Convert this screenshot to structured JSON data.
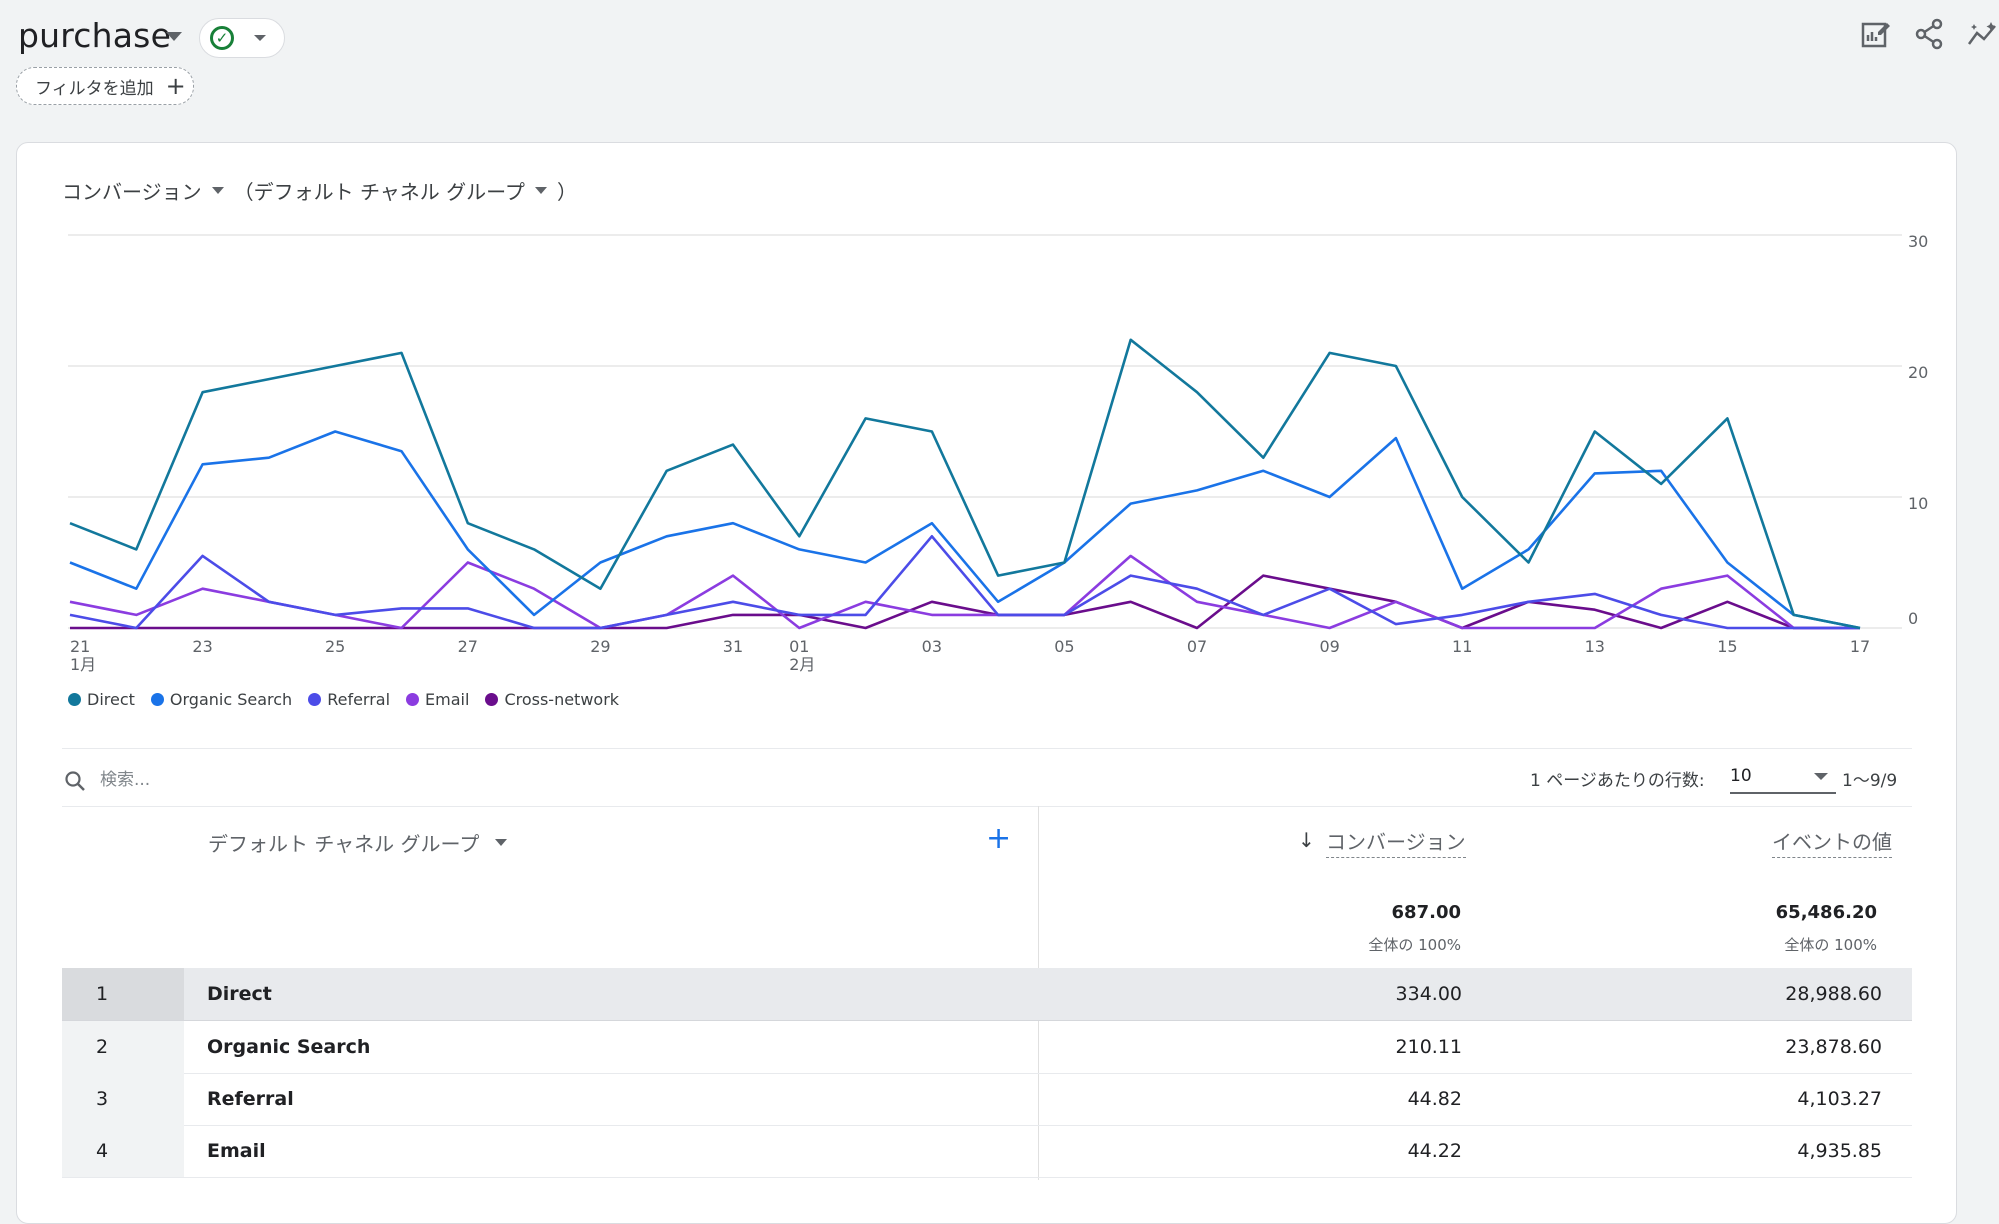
{
  "header": {
    "title": "purchase",
    "filter_chip_label": "フィルタを追加"
  },
  "card": {
    "metric_label": "コンバージョン",
    "dimension_label": "（デフォルト チャネル グループ",
    "dimension_close": "）"
  },
  "chart_data": {
    "type": "line",
    "title": "",
    "x": [
      "21",
      "22",
      "23",
      "24",
      "25",
      "26",
      "27",
      "28",
      "29",
      "30",
      "31",
      "01",
      "02",
      "03",
      "04",
      "05",
      "06",
      "07",
      "08",
      "09",
      "10",
      "11",
      "12",
      "13",
      "14",
      "15",
      "16",
      "17"
    ],
    "x_tick_labels": [
      "21",
      "23",
      "25",
      "27",
      "29",
      "31",
      "01",
      "03",
      "05",
      "07",
      "09",
      "11",
      "13",
      "15",
      "17"
    ],
    "month_labels": [
      {
        "at": "21",
        "label": "1月"
      },
      {
        "at": "01",
        "label": "2月"
      }
    ],
    "ylim": [
      0,
      30
    ],
    "y_ticks": [
      0,
      10,
      20,
      30
    ],
    "grid": true,
    "legend": "bottom-left",
    "series": [
      {
        "name": "Direct",
        "color": "#12789c",
        "values": [
          8,
          6,
          18,
          19,
          20,
          21,
          8,
          6,
          3,
          12,
          14,
          7,
          16,
          15,
          4,
          5,
          22,
          18,
          13,
          21,
          20,
          10,
          5,
          15,
          11,
          16,
          1,
          0
        ]
      },
      {
        "name": "Organic Search",
        "color": "#1a73e8",
        "values": [
          5,
          3,
          12.5,
          13,
          15,
          13.5,
          6,
          1,
          5,
          7,
          8,
          6,
          5,
          8,
          2,
          5,
          9.5,
          10.5,
          12,
          10,
          14.5,
          3,
          6,
          11.8,
          12,
          5,
          1,
          0
        ]
      },
      {
        "name": "Referral",
        "color": "#4c4ce8",
        "values": [
          1,
          0,
          5.5,
          2,
          1,
          1.5,
          1.5,
          0,
          0,
          1,
          2,
          1,
          1,
          7,
          1,
          1,
          4,
          3,
          1,
          3,
          0.3,
          1,
          2,
          2.6,
          1,
          0,
          0,
          0
        ]
      },
      {
        "name": "Email",
        "color": "#8b3ce0",
        "values": [
          2,
          1,
          3,
          2,
          1,
          0,
          5,
          3,
          0,
          1,
          4,
          0,
          2,
          1,
          1,
          1,
          5.5,
          2,
          1,
          0,
          2,
          0,
          0,
          0,
          3,
          4,
          0,
          0
        ]
      },
      {
        "name": "Cross-network",
        "color": "#6a0d8c",
        "values": [
          0,
          0,
          0,
          0,
          0,
          0,
          0,
          0,
          0,
          0,
          1,
          1,
          0,
          2,
          1,
          1,
          2,
          0,
          4,
          3,
          2,
          0,
          2,
          1.4,
          0,
          2,
          0,
          0
        ]
      }
    ]
  },
  "table_controls": {
    "search_placeholder": "検索...",
    "rows_per_page_label": "1 ページあたりの行数:",
    "rows_per_page_value": "10",
    "page_range": "1〜9/9"
  },
  "table": {
    "dimension_header": "デフォルト チャネル グループ",
    "sort_arrow": "↓",
    "metric1_header": "コンバージョン",
    "metric2_header": "イベントの値",
    "total1": "687.00",
    "total1_sub": "全体の 100%",
    "total2": "65,486.20",
    "total2_sub": "全体の 100%",
    "rows": [
      {
        "index": "1",
        "name": "Direct",
        "conversions": "334.00",
        "event_value": "28,988.60"
      },
      {
        "index": "2",
        "name": "Organic Search",
        "conversions": "210.11",
        "event_value": "23,878.60"
      },
      {
        "index": "3",
        "name": "Referral",
        "conversions": "44.82",
        "event_value": "4,103.27"
      },
      {
        "index": "4",
        "name": "Email",
        "conversions": "44.22",
        "event_value": "4,935.85"
      }
    ]
  }
}
